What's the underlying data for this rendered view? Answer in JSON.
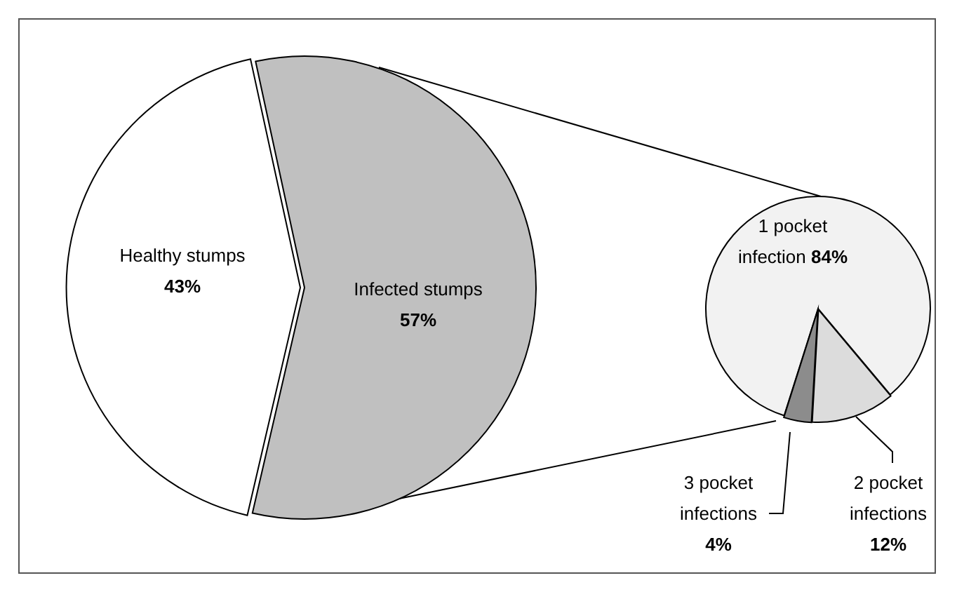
{
  "chart_data": [
    {
      "type": "pie",
      "categories": [
        "Healthy stumps",
        "Infected stumps"
      ],
      "values": [
        43,
        57
      ],
      "colors": [
        "#ffffff",
        "#c0c0c0"
      ],
      "value_labels": [
        "43%",
        "57%"
      ]
    },
    {
      "type": "pie",
      "categories": [
        "1 pocket infection",
        "2 pocket infections",
        "3 pocket infections"
      ],
      "values": [
        84,
        12,
        4
      ],
      "colors": [
        "#f2f2f2",
        "#dcdcdc",
        "#8c8c8c"
      ],
      "value_labels": [
        "84%",
        "12%",
        "4%"
      ]
    }
  ]
}
